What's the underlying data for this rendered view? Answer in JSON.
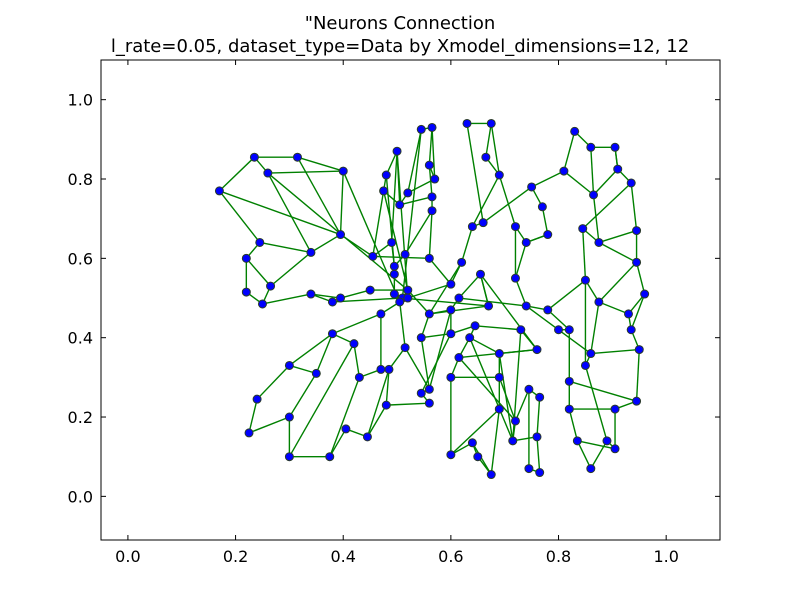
{
  "chart_data": {
    "type": "scatter",
    "title_line1": "\"Neurons Connection",
    "title_line2": "l_rate=0.05, dataset_type=Data by Xmodel_dimensions=12, 12",
    "xlabel": "",
    "ylabel": "",
    "xlim": [
      -0.05,
      1.1
    ],
    "ylim": [
      -0.11,
      1.1
    ],
    "x_ticks": [
      0.0,
      0.2,
      0.4,
      0.6,
      0.8,
      1.0
    ],
    "y_ticks": [
      0.0,
      0.2,
      0.4,
      0.6,
      0.8,
      1.0
    ],
    "x_tick_labels": [
      "0.0",
      "0.2",
      "0.4",
      "0.6",
      "0.8",
      "1.0"
    ],
    "y_tick_labels": [
      "0.0",
      "0.2",
      "0.4",
      "0.6",
      "0.8",
      "1.0"
    ],
    "grid": false,
    "node_color": "#0000ff",
    "edge_color": "#008000",
    "nodes": [
      [
        0.17,
        0.77
      ],
      [
        0.235,
        0.855
      ],
      [
        0.315,
        0.855
      ],
      [
        0.26,
        0.815
      ],
      [
        0.4,
        0.82
      ],
      [
        0.395,
        0.66
      ],
      [
        0.245,
        0.64
      ],
      [
        0.22,
        0.6
      ],
      [
        0.22,
        0.515
      ],
      [
        0.34,
        0.615
      ],
      [
        0.265,
        0.53
      ],
      [
        0.25,
        0.485
      ],
      [
        0.34,
        0.51
      ],
      [
        0.38,
        0.49
      ],
      [
        0.45,
        0.52
      ],
      [
        0.395,
        0.5
      ],
      [
        0.455,
        0.605
      ],
      [
        0.47,
        0.46
      ],
      [
        0.49,
        0.64
      ],
      [
        0.475,
        0.77
      ],
      [
        0.48,
        0.81
      ],
      [
        0.5,
        0.87
      ],
      [
        0.495,
        0.58
      ],
      [
        0.495,
        0.56
      ],
      [
        0.505,
        0.735
      ],
      [
        0.52,
        0.765
      ],
      [
        0.515,
        0.61
      ],
      [
        0.545,
        0.925
      ],
      [
        0.565,
        0.93
      ],
      [
        0.57,
        0.8
      ],
      [
        0.56,
        0.835
      ],
      [
        0.565,
        0.755
      ],
      [
        0.565,
        0.72
      ],
      [
        0.56,
        0.6
      ],
      [
        0.6,
        0.535
      ],
      [
        0.62,
        0.59
      ],
      [
        0.64,
        0.68
      ],
      [
        0.66,
        0.69
      ],
      [
        0.63,
        0.94
      ],
      [
        0.675,
        0.94
      ],
      [
        0.665,
        0.855
      ],
      [
        0.69,
        0.81
      ],
      [
        0.72,
        0.68
      ],
      [
        0.72,
        0.55
      ],
      [
        0.75,
        0.78
      ],
      [
        0.74,
        0.64
      ],
      [
        0.78,
        0.66
      ],
      [
        0.77,
        0.73
      ],
      [
        0.74,
        0.48
      ],
      [
        0.78,
        0.47
      ],
      [
        0.81,
        0.82
      ],
      [
        0.83,
        0.92
      ],
      [
        0.86,
        0.88
      ],
      [
        0.865,
        0.76
      ],
      [
        0.875,
        0.64
      ],
      [
        0.845,
        0.675
      ],
      [
        0.85,
        0.545
      ],
      [
        0.875,
        0.49
      ],
      [
        0.905,
        0.88
      ],
      [
        0.91,
        0.825
      ],
      [
        0.935,
        0.79
      ],
      [
        0.945,
        0.67
      ],
      [
        0.945,
        0.59
      ],
      [
        0.96,
        0.51
      ],
      [
        0.93,
        0.46
      ],
      [
        0.935,
        0.42
      ],
      [
        0.95,
        0.37
      ],
      [
        0.945,
        0.24
      ],
      [
        0.905,
        0.22
      ],
      [
        0.905,
        0.12
      ],
      [
        0.89,
        0.14
      ],
      [
        0.86,
        0.07
      ],
      [
        0.86,
        0.36
      ],
      [
        0.85,
        0.33
      ],
      [
        0.82,
        0.22
      ],
      [
        0.82,
        0.29
      ],
      [
        0.82,
        0.42
      ],
      [
        0.835,
        0.14
      ],
      [
        0.8,
        0.42
      ],
      [
        0.765,
        0.25
      ],
      [
        0.76,
        0.15
      ],
      [
        0.765,
        0.06
      ],
      [
        0.745,
        0.07
      ],
      [
        0.745,
        0.27
      ],
      [
        0.72,
        0.19
      ],
      [
        0.715,
        0.14
      ],
      [
        0.73,
        0.42
      ],
      [
        0.76,
        0.37
      ],
      [
        0.69,
        0.36
      ],
      [
        0.69,
        0.3
      ],
      [
        0.69,
        0.22
      ],
      [
        0.675,
        0.055
      ],
      [
        0.65,
        0.1
      ],
      [
        0.64,
        0.135
      ],
      [
        0.6,
        0.105
      ],
      [
        0.6,
        0.3
      ],
      [
        0.615,
        0.35
      ],
      [
        0.635,
        0.4
      ],
      [
        0.645,
        0.43
      ],
      [
        0.6,
        0.41
      ],
      [
        0.6,
        0.47
      ],
      [
        0.615,
        0.5
      ],
      [
        0.655,
        0.56
      ],
      [
        0.67,
        0.48
      ],
      [
        0.56,
        0.46
      ],
      [
        0.545,
        0.4
      ],
      [
        0.56,
        0.27
      ],
      [
        0.545,
        0.26
      ],
      [
        0.56,
        0.235
      ],
      [
        0.48,
        0.23
      ],
      [
        0.485,
        0.32
      ],
      [
        0.47,
        0.32
      ],
      [
        0.43,
        0.3
      ],
      [
        0.42,
        0.385
      ],
      [
        0.38,
        0.41
      ],
      [
        0.35,
        0.31
      ],
      [
        0.3,
        0.33
      ],
      [
        0.24,
        0.245
      ],
      [
        0.225,
        0.16
      ],
      [
        0.3,
        0.2
      ],
      [
        0.3,
        0.1
      ],
      [
        0.375,
        0.1
      ],
      [
        0.405,
        0.17
      ],
      [
        0.445,
        0.15
      ],
      [
        0.51,
        0.5
      ],
      [
        0.52,
        0.52
      ],
      [
        0.505,
        0.49
      ],
      [
        0.52,
        0.5
      ],
      [
        0.495,
        0.51
      ],
      [
        0.515,
        0.375
      ]
    ],
    "edges": [
      [
        0,
        1
      ],
      [
        1,
        2
      ],
      [
        1,
        3
      ],
      [
        3,
        4
      ],
      [
        2,
        4
      ],
      [
        0,
        6
      ],
      [
        6,
        7
      ],
      [
        7,
        8
      ],
      [
        8,
        11
      ],
      [
        6,
        9
      ],
      [
        9,
        10
      ],
      [
        10,
        11
      ],
      [
        11,
        12
      ],
      [
        12,
        13
      ],
      [
        13,
        15
      ],
      [
        15,
        14
      ],
      [
        4,
        5
      ],
      [
        5,
        9
      ],
      [
        3,
        9
      ],
      [
        2,
        5
      ],
      [
        5,
        16
      ],
      [
        16,
        18
      ],
      [
        18,
        22
      ],
      [
        22,
        23
      ],
      [
        19,
        20
      ],
      [
        20,
        21
      ],
      [
        21,
        24
      ],
      [
        24,
        25
      ],
      [
        25,
        27
      ],
      [
        27,
        28
      ],
      [
        28,
        29
      ],
      [
        29,
        30
      ],
      [
        30,
        31
      ],
      [
        31,
        32
      ],
      [
        32,
        33
      ],
      [
        33,
        34
      ],
      [
        34,
        35
      ],
      [
        35,
        36
      ],
      [
        36,
        37
      ],
      [
        37,
        38
      ],
      [
        38,
        39
      ],
      [
        39,
        40
      ],
      [
        40,
        41
      ],
      [
        41,
        42
      ],
      [
        42,
        43
      ],
      [
        43,
        48
      ],
      [
        48,
        49
      ],
      [
        49,
        56
      ],
      [
        56,
        57
      ],
      [
        57,
        64
      ],
      [
        64,
        63
      ],
      [
        63,
        62
      ],
      [
        62,
        61
      ],
      [
        61,
        60
      ],
      [
        60,
        59
      ],
      [
        59,
        58
      ],
      [
        58,
        52
      ],
      [
        52,
        51
      ],
      [
        51,
        50
      ],
      [
        50,
        44
      ],
      [
        44,
        47
      ],
      [
        47,
        46
      ],
      [
        46,
        45
      ],
      [
        45,
        42
      ],
      [
        53,
        54
      ],
      [
        54,
        55
      ],
      [
        55,
        56
      ],
      [
        53,
        59
      ],
      [
        54,
        61
      ],
      [
        62,
        57
      ],
      [
        65,
        66
      ],
      [
        66,
        67
      ],
      [
        67,
        68
      ],
      [
        68,
        69
      ],
      [
        69,
        70
      ],
      [
        70,
        71
      ],
      [
        71,
        77
      ],
      [
        77,
        74
      ],
      [
        74,
        75
      ],
      [
        75,
        76
      ],
      [
        76,
        78
      ],
      [
        78,
        72
      ],
      [
        72,
        73
      ],
      [
        73,
        70
      ],
      [
        65,
        64
      ],
      [
        72,
        57
      ],
      [
        79,
        80
      ],
      [
        80,
        81
      ],
      [
        81,
        82
      ],
      [
        82,
        83
      ],
      [
        83,
        84
      ],
      [
        84,
        85
      ],
      [
        85,
        86
      ],
      [
        86,
        87
      ],
      [
        87,
        88
      ],
      [
        88,
        89
      ],
      [
        89,
        90
      ],
      [
        90,
        91
      ],
      [
        91,
        92
      ],
      [
        92,
        93
      ],
      [
        93,
        94
      ],
      [
        94,
        95
      ],
      [
        95,
        96
      ],
      [
        96,
        97
      ],
      [
        97,
        98
      ],
      [
        98,
        99
      ],
      [
        99,
        100
      ],
      [
        100,
        101
      ],
      [
        101,
        102
      ],
      [
        102,
        103
      ],
      [
        103,
        104
      ],
      [
        104,
        105
      ],
      [
        105,
        106
      ],
      [
        106,
        107
      ],
      [
        107,
        108
      ],
      [
        108,
        109
      ],
      [
        109,
        110
      ],
      [
        110,
        111
      ],
      [
        111,
        112
      ],
      [
        112,
        113
      ],
      [
        113,
        114
      ],
      [
        114,
        115
      ],
      [
        115,
        116
      ],
      [
        116,
        117
      ],
      [
        117,
        118
      ],
      [
        118,
        119
      ],
      [
        119,
        120
      ],
      [
        120,
        121
      ],
      [
        121,
        122
      ],
      [
        122,
        123
      ],
      [
        123,
        109
      ],
      [
        124,
        125
      ],
      [
        125,
        126
      ],
      [
        126,
        127
      ],
      [
        127,
        128
      ],
      [
        128,
        124
      ],
      [
        124,
        13
      ],
      [
        125,
        14
      ],
      [
        126,
        17
      ],
      [
        127,
        34
      ],
      [
        128,
        23
      ],
      [
        124,
        103
      ],
      [
        125,
        104
      ],
      [
        126,
        129
      ],
      [
        129,
        110
      ],
      [
        129,
        106
      ],
      [
        17,
        111
      ],
      [
        17,
        114
      ],
      [
        19,
        24
      ],
      [
        20,
        22
      ],
      [
        29,
        25
      ],
      [
        31,
        24
      ],
      [
        32,
        26
      ],
      [
        26,
        22
      ],
      [
        33,
        16
      ],
      [
        35,
        104
      ],
      [
        36,
        41
      ],
      [
        37,
        44
      ],
      [
        43,
        45
      ],
      [
        45,
        46
      ],
      [
        48,
        78
      ],
      [
        49,
        76
      ],
      [
        56,
        73
      ],
      [
        86,
        87
      ],
      [
        87,
        96
      ],
      [
        88,
        97
      ],
      [
        89,
        95
      ],
      [
        90,
        94
      ],
      [
        91,
        93
      ],
      [
        80,
        85
      ],
      [
        79,
        83
      ],
      [
        84,
        89
      ],
      [
        85,
        88
      ],
      [
        99,
        105
      ],
      [
        100,
        104
      ],
      [
        102,
        103
      ],
      [
        7,
        10
      ],
      [
        12,
        15
      ],
      [
        16,
        19
      ],
      [
        18,
        21
      ],
      [
        28,
        30
      ],
      [
        39,
        41
      ],
      [
        50,
        53
      ],
      [
        52,
        53
      ],
      [
        60,
        55
      ],
      [
        62,
        54
      ],
      [
        58,
        59
      ],
      [
        69,
        77
      ],
      [
        68,
        74
      ],
      [
        67,
        75
      ],
      [
        66,
        72
      ],
      [
        63,
        65
      ],
      [
        98,
        86
      ],
      [
        97,
        85
      ],
      [
        96,
        84
      ],
      [
        101,
        48
      ],
      [
        102,
        87
      ],
      [
        100,
        106
      ],
      [
        99,
        107
      ],
      [
        113,
        120
      ],
      [
        112,
        121
      ],
      [
        115,
        119
      ],
      [
        114,
        116
      ],
      [
        110,
        123
      ],
      [
        3,
        125
      ],
      [
        0,
        5
      ],
      [
        4,
        126
      ],
      [
        19,
        125
      ],
      [
        21,
        127
      ],
      [
        27,
        124
      ]
    ]
  }
}
